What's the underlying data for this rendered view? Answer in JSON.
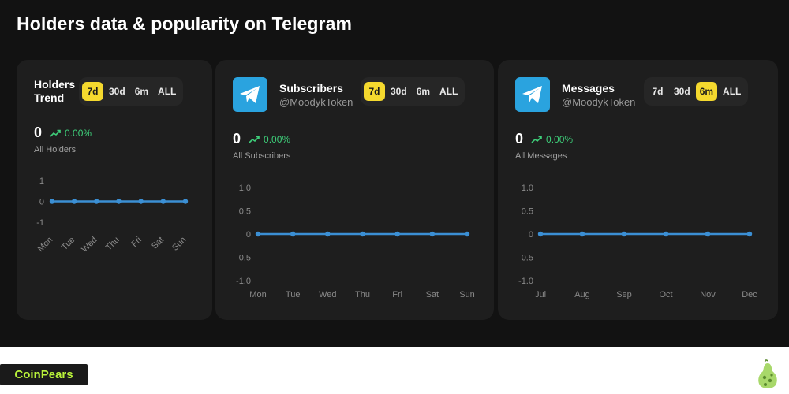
{
  "page": {
    "title": "Holders data & popularity on Telegram"
  },
  "colors": {
    "accent": "#f5d92e",
    "line": "#3b8fd4",
    "positive": "#3ecf7a",
    "telegram": "#2aa3df"
  },
  "holders": {
    "title_line1": "Holders",
    "title_line2": "Trend",
    "tabs": [
      "7d",
      "30d",
      "6m",
      "ALL"
    ],
    "active_tab": "7d",
    "value": "0",
    "change": "0.00%",
    "label": "All Holders"
  },
  "subscribers": {
    "title": "Subscribers",
    "handle": "@MoodykToken",
    "icon": "telegram-icon",
    "tabs": [
      "7d",
      "30d",
      "6m",
      "ALL"
    ],
    "active_tab": "7d",
    "value": "0",
    "change": "0.00%",
    "label": "All Subscribers"
  },
  "messages": {
    "title": "Messages",
    "handle": "@MoodykToken",
    "icon": "telegram-icon",
    "tabs": [
      "7d",
      "30d",
      "6m",
      "ALL"
    ],
    "active_tab": "6m",
    "value": "0",
    "change": "0.00%",
    "label": "All Messages"
  },
  "chart_data": [
    {
      "type": "line",
      "title": "",
      "categories": [
        "Mon",
        "Tue",
        "Wed",
        "Thu",
        "Fri",
        "Sat",
        "Sun"
      ],
      "series": [
        {
          "values": [
            0,
            0,
            0,
            0,
            0,
            0,
            0
          ]
        }
      ],
      "yticks": [
        "1",
        "0",
        "-1"
      ],
      "ylim": [
        -1,
        1
      ],
      "grid": false
    },
    {
      "type": "line",
      "title": "",
      "categories": [
        "Mon",
        "Tue",
        "Wed",
        "Thu",
        "Fri",
        "Sat",
        "Sun"
      ],
      "series": [
        {
          "values": [
            0,
            0,
            0,
            0,
            0,
            0,
            0
          ]
        }
      ],
      "yticks": [
        "1.0",
        "0.5",
        "0",
        "-0.5",
        "-1.0"
      ],
      "ylim": [
        -1,
        1
      ],
      "grid": false
    },
    {
      "type": "line",
      "title": "",
      "categories": [
        "Jul",
        "Aug",
        "Sep",
        "Oct",
        "Nov",
        "Dec"
      ],
      "series": [
        {
          "values": [
            0,
            0,
            0,
            0,
            0,
            0
          ]
        }
      ],
      "yticks": [
        "1.0",
        "0.5",
        "0",
        "-0.5",
        "-1.0"
      ],
      "ylim": [
        -1,
        1
      ],
      "grid": false
    }
  ],
  "footer": {
    "brand": "CoinPears",
    "logo_icon": "pear-icon"
  }
}
